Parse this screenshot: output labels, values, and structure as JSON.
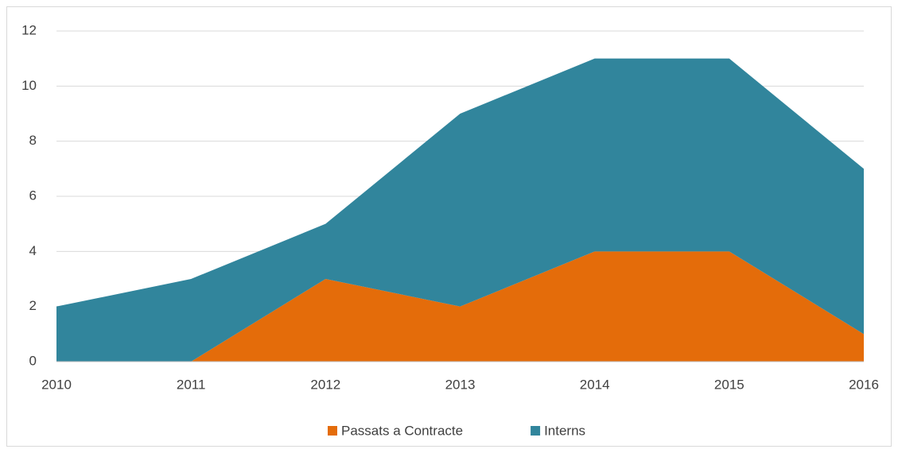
{
  "chart_data": {
    "type": "stacked_area",
    "categories": [
      "2010",
      "2011",
      "2012",
      "2013",
      "2014",
      "2015",
      "2016"
    ],
    "series": [
      {
        "name": "Passats a Contracte",
        "color": "#e46c0a",
        "values": [
          0,
          0,
          3,
          2,
          4,
          4,
          1
        ]
      },
      {
        "name": "Interns",
        "color": "#31859c",
        "values": [
          2,
          3,
          2,
          7,
          7,
          7,
          6
        ]
      }
    ],
    "ylim": [
      0,
      12
    ],
    "yticks": [
      0,
      2,
      4,
      6,
      8,
      10,
      12
    ],
    "grid": true,
    "legend": "bottom"
  }
}
